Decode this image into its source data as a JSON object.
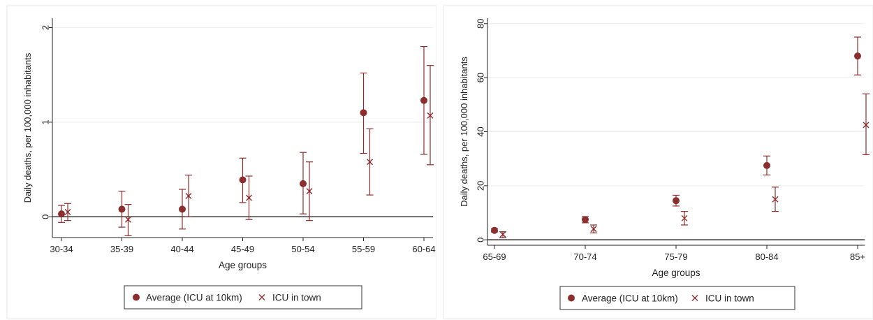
{
  "chart_data": [
    {
      "type": "scatter",
      "xlabel": "Age groups",
      "ylabel": "Daily deaths, per 100,000 inhabitants",
      "categories": [
        "30-34",
        "35-39",
        "40-44",
        "45-49",
        "50-54",
        "55-59",
        "60-64"
      ],
      "ylim": [
        -0.22,
        2.1
      ],
      "yticks": [
        "0",
        "1",
        "2"
      ],
      "grid": true,
      "legend_position": "bottom",
      "series": [
        {
          "name": "Average (ICU at 10km)",
          "marker": "circle",
          "values": [
            0.03,
            0.08,
            0.08,
            0.39,
            0.35,
            1.1,
            1.23
          ],
          "ci_low": [
            -0.06,
            -0.11,
            -0.13,
            0.15,
            0.03,
            0.67,
            0.66
          ],
          "ci_high": [
            0.12,
            0.27,
            0.29,
            0.62,
            0.68,
            1.52,
            1.8
          ]
        },
        {
          "name": "ICU in town",
          "marker": "x",
          "values": [
            0.05,
            -0.03,
            0.22,
            0.2,
            0.27,
            0.58,
            1.07
          ],
          "ci_low": [
            -0.04,
            -0.2,
            0.0,
            -0.03,
            -0.04,
            0.23,
            0.55
          ],
          "ci_high": [
            0.14,
            0.13,
            0.44,
            0.43,
            0.58,
            0.93,
            1.6
          ]
        }
      ]
    },
    {
      "type": "scatter",
      "xlabel": "Age groups",
      "ylabel": "Daily deaths, per 100,000 inhabitants",
      "categories": [
        "65-69",
        "70-74",
        "75-79",
        "80-84",
        "85+"
      ],
      "ylim": [
        -2,
        82
      ],
      "yticks": [
        "0",
        "20",
        "40",
        "60",
        "80"
      ],
      "grid": true,
      "legend_position": "bottom",
      "series": [
        {
          "name": "Average (ICU at 10km)",
          "marker": "circle",
          "values": [
            3.5,
            7.5,
            14.5,
            27.5,
            68
          ],
          "ci_low": [
            2.9,
            6.3,
            12.5,
            24,
            61
          ],
          "ci_high": [
            4.1,
            8.6,
            16.5,
            31,
            75
          ]
        },
        {
          "name": "ICU in town",
          "marker": "x",
          "values": [
            2.0,
            4.0,
            8.0,
            15,
            42.5
          ],
          "ci_low": [
            0.8,
            2.6,
            5.5,
            10.5,
            31.5
          ],
          "ci_high": [
            3.0,
            5.5,
            10.5,
            19.5,
            54
          ]
        }
      ]
    }
  ],
  "colors": {
    "circle": "#8b2e2e",
    "x": "#8b2e2e",
    "grid": "#eeeeee",
    "axis": "#222222"
  }
}
